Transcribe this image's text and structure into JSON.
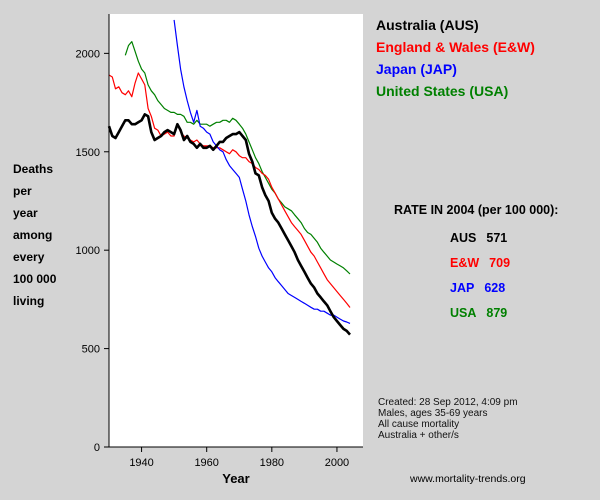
{
  "chart_data": {
    "type": "line",
    "xlabel": "Year",
    "ylabel_lines": [
      "Deaths",
      "per",
      "year",
      "among",
      "every",
      "100 000",
      "living"
    ],
    "xlim": [
      1930,
      2008
    ],
    "ylim": [
      0,
      2200
    ],
    "xticks": [
      1940,
      1960,
      1980,
      2000
    ],
    "yticks": [
      0,
      500,
      1000,
      1500,
      2000
    ],
    "series": [
      {
        "name": "Australia (AUS)",
        "color": "#000000",
        "x": [
          1930,
          1931,
          1932,
          1933,
          1934,
          1935,
          1936,
          1937,
          1938,
          1939,
          1940,
          1941,
          1942,
          1943,
          1944,
          1945,
          1946,
          1947,
          1948,
          1949,
          1950,
          1951,
          1952,
          1953,
          1954,
          1955,
          1956,
          1957,
          1958,
          1959,
          1960,
          1961,
          1962,
          1963,
          1964,
          1965,
          1966,
          1967,
          1968,
          1969,
          1970,
          1971,
          1972,
          1973,
          1974,
          1975,
          1976,
          1977,
          1978,
          1979,
          1980,
          1981,
          1982,
          1983,
          1984,
          1985,
          1986,
          1987,
          1988,
          1989,
          1990,
          1991,
          1992,
          1993,
          1994,
          1995,
          1996,
          1997,
          1998,
          1999,
          2000,
          2001,
          2002,
          2003,
          2004
        ],
        "y": [
          1630,
          1580,
          1570,
          1600,
          1630,
          1660,
          1660,
          1640,
          1640,
          1650,
          1660,
          1690,
          1680,
          1600,
          1560,
          1570,
          1580,
          1600,
          1610,
          1600,
          1590,
          1640,
          1610,
          1560,
          1580,
          1550,
          1540,
          1520,
          1540,
          1520,
          1520,
          1530,
          1510,
          1530,
          1550,
          1550,
          1570,
          1580,
          1590,
          1590,
          1600,
          1580,
          1560,
          1490,
          1450,
          1390,
          1380,
          1320,
          1280,
          1250,
          1190,
          1160,
          1140,
          1110,
          1080,
          1050,
          1020,
          990,
          950,
          920,
          890,
          860,
          830,
          810,
          780,
          760,
          740,
          720,
          690,
          660,
          640,
          620,
          600,
          590,
          571
        ]
      },
      {
        "name": "England & Wales (E&W)",
        "color": "#ff0000",
        "x": [
          1930,
          1931,
          1932,
          1933,
          1934,
          1935,
          1936,
          1937,
          1938,
          1939,
          1940,
          1941,
          1942,
          1943,
          1944,
          1945,
          1946,
          1947,
          1948,
          1949,
          1950,
          1951,
          1952,
          1953,
          1954,
          1955,
          1956,
          1957,
          1958,
          1959,
          1960,
          1961,
          1962,
          1963,
          1964,
          1965,
          1966,
          1967,
          1968,
          1969,
          1970,
          1971,
          1972,
          1973,
          1974,
          1975,
          1976,
          1977,
          1978,
          1979,
          1980,
          1981,
          1982,
          1983,
          1984,
          1985,
          1986,
          1987,
          1988,
          1989,
          1990,
          1991,
          1992,
          1993,
          1994,
          1995,
          1996,
          1997,
          1998,
          1999,
          2000,
          2001,
          2002,
          2003,
          2004
        ],
        "y": [
          1890,
          1880,
          1820,
          1830,
          1800,
          1790,
          1810,
          1780,
          1850,
          1900,
          1870,
          1840,
          1720,
          1680,
          1620,
          1610,
          1580,
          1590,
          1600,
          1580,
          1580,
          1640,
          1600,
          1580,
          1570,
          1560,
          1550,
          1560,
          1540,
          1530,
          1530,
          1530,
          1520,
          1520,
          1520,
          1510,
          1500,
          1490,
          1510,
          1500,
          1480,
          1470,
          1470,
          1450,
          1440,
          1420,
          1410,
          1390,
          1380,
          1360,
          1320,
          1290,
          1260,
          1230,
          1200,
          1170,
          1140,
          1120,
          1100,
          1080,
          1050,
          1020,
          990,
          970,
          940,
          910,
          880,
          850,
          830,
          810,
          790,
          770,
          750,
          730,
          709
        ]
      },
      {
        "name": "Japan (JAP)",
        "color": "#0000ff",
        "x": [
          1950,
          1951,
          1952,
          1953,
          1954,
          1955,
          1956,
          1957,
          1958,
          1959,
          1960,
          1961,
          1962,
          1963,
          1964,
          1965,
          1966,
          1967,
          1968,
          1969,
          1970,
          1971,
          1972,
          1973,
          1974,
          1975,
          1976,
          1977,
          1978,
          1979,
          1980,
          1981,
          1982,
          1983,
          1984,
          1985,
          1986,
          1987,
          1988,
          1989,
          1990,
          1991,
          1992,
          1993,
          1994,
          1995,
          1996,
          1997,
          1998,
          1999,
          2000,
          2001,
          2002,
          2003,
          2004
        ],
        "y": [
          2170,
          2040,
          1920,
          1830,
          1760,
          1700,
          1650,
          1710,
          1630,
          1620,
          1600,
          1590,
          1550,
          1530,
          1510,
          1500,
          1460,
          1430,
          1410,
          1390,
          1370,
          1310,
          1250,
          1180,
          1120,
          1070,
          1010,
          970,
          940,
          910,
          890,
          860,
          840,
          820,
          800,
          780,
          770,
          760,
          750,
          740,
          730,
          720,
          710,
          700,
          700,
          690,
          690,
          680,
          670,
          670,
          660,
          650,
          640,
          635,
          628
        ]
      },
      {
        "name": "United States (USA)",
        "color": "#008000",
        "x": [
          1935,
          1936,
          1937,
          1938,
          1939,
          1940,
          1941,
          1942,
          1943,
          1944,
          1945,
          1946,
          1947,
          1948,
          1949,
          1950,
          1951,
          1952,
          1953,
          1954,
          1955,
          1956,
          1957,
          1958,
          1959,
          1960,
          1961,
          1962,
          1963,
          1964,
          1965,
          1966,
          1967,
          1968,
          1969,
          1970,
          1971,
          1972,
          1973,
          1974,
          1975,
          1976,
          1977,
          1978,
          1979,
          1980,
          1981,
          1982,
          1983,
          1984,
          1985,
          1986,
          1987,
          1988,
          1989,
          1990,
          1991,
          1992,
          1993,
          1994,
          1995,
          1996,
          1997,
          1998,
          1999,
          2000,
          2001,
          2002,
          2003,
          2004
        ],
        "y": [
          1990,
          2040,
          2060,
          2010,
          1960,
          1920,
          1900,
          1840,
          1810,
          1790,
          1760,
          1740,
          1720,
          1710,
          1700,
          1700,
          1690,
          1690,
          1680,
          1650,
          1650,
          1640,
          1660,
          1640,
          1640,
          1640,
          1630,
          1640,
          1650,
          1650,
          1660,
          1660,
          1650,
          1670,
          1660,
          1640,
          1620,
          1590,
          1550,
          1510,
          1470,
          1440,
          1400,
          1370,
          1340,
          1310,
          1290,
          1260,
          1240,
          1220,
          1210,
          1200,
          1180,
          1160,
          1140,
          1110,
          1090,
          1080,
          1060,
          1040,
          1010,
          990,
          970,
          950,
          940,
          930,
          920,
          910,
          895,
          879
        ]
      }
    ]
  },
  "rates": {
    "title": "RATE IN 2004 (per 100 000):",
    "rows": [
      {
        "label": "AUS",
        "value": "571",
        "color": "#000000"
      },
      {
        "label": "E&W",
        "value": "709",
        "color": "#ff0000"
      },
      {
        "label": "JAP",
        "value": "628",
        "color": "#0000ff"
      },
      {
        "label": "USA",
        "value": "879",
        "color": "#008000"
      }
    ]
  },
  "notes": {
    "created": "Created: 28 Sep 2012, 4:09 pm",
    "population": "Males, ages 35-69 years",
    "cause": "All cause mortality",
    "region": "Australia + other/s"
  },
  "website": "www.mortality-trends.org"
}
